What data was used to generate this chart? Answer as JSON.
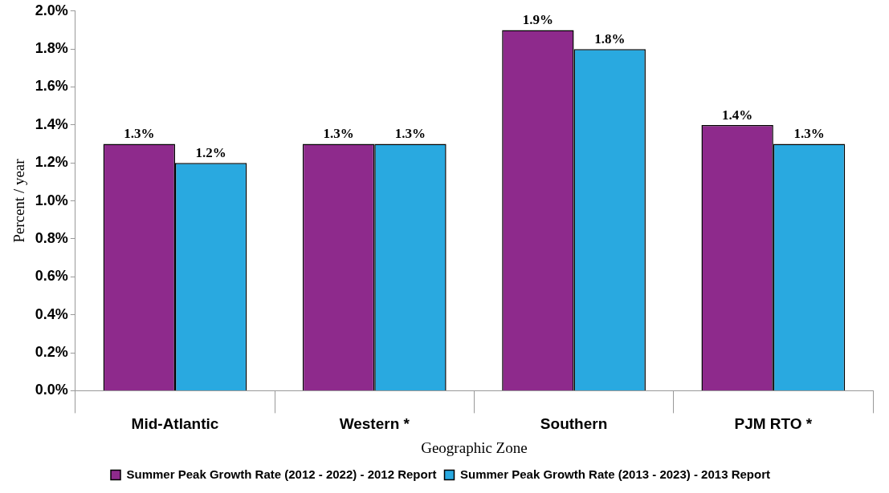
{
  "chart_data": {
    "type": "bar",
    "xlabel": "Geographic Zone",
    "ylabel": "Percent / year",
    "categories": [
      "Mid-Atlantic",
      "Western *",
      "Southern",
      "PJM RTO *"
    ],
    "series": [
      {
        "name": "Summer Peak Growth Rate (2012 - 2022) - 2012 Report",
        "color": "#8e2a8c",
        "values": [
          1.3,
          1.3,
          1.9,
          1.4
        ],
        "value_labels": [
          "1.3%",
          "1.3%",
          "1.9%",
          "1.4%"
        ]
      },
      {
        "name": "Summer Peak Growth Rate (2013 - 2023) - 2013 Report",
        "color": "#29a9e0",
        "values": [
          1.2,
          1.3,
          1.8,
          1.3
        ],
        "value_labels": [
          "1.2%",
          "1.3%",
          "1.8%",
          "1.3%"
        ]
      }
    ],
    "ylim": [
      0,
      2.0
    ],
    "yticks": [
      {
        "value": 0,
        "label": "0.0%"
      },
      {
        "value": 0.2,
        "label": "0.2%"
      },
      {
        "value": 0.4,
        "label": "0.4%"
      },
      {
        "value": 0.6,
        "label": "0.6%"
      },
      {
        "value": 0.8,
        "label": "0.8%"
      },
      {
        "value": 1.0,
        "label": "1.0%"
      },
      {
        "value": 1.2,
        "label": "1.2%"
      },
      {
        "value": 1.4,
        "label": "1.4%"
      },
      {
        "value": 1.6,
        "label": "1.6%"
      },
      {
        "value": 1.8,
        "label": "1.8%"
      },
      {
        "value": 2.0,
        "label": "2.0%"
      }
    ],
    "grid": false,
    "legend": "bottom"
  }
}
